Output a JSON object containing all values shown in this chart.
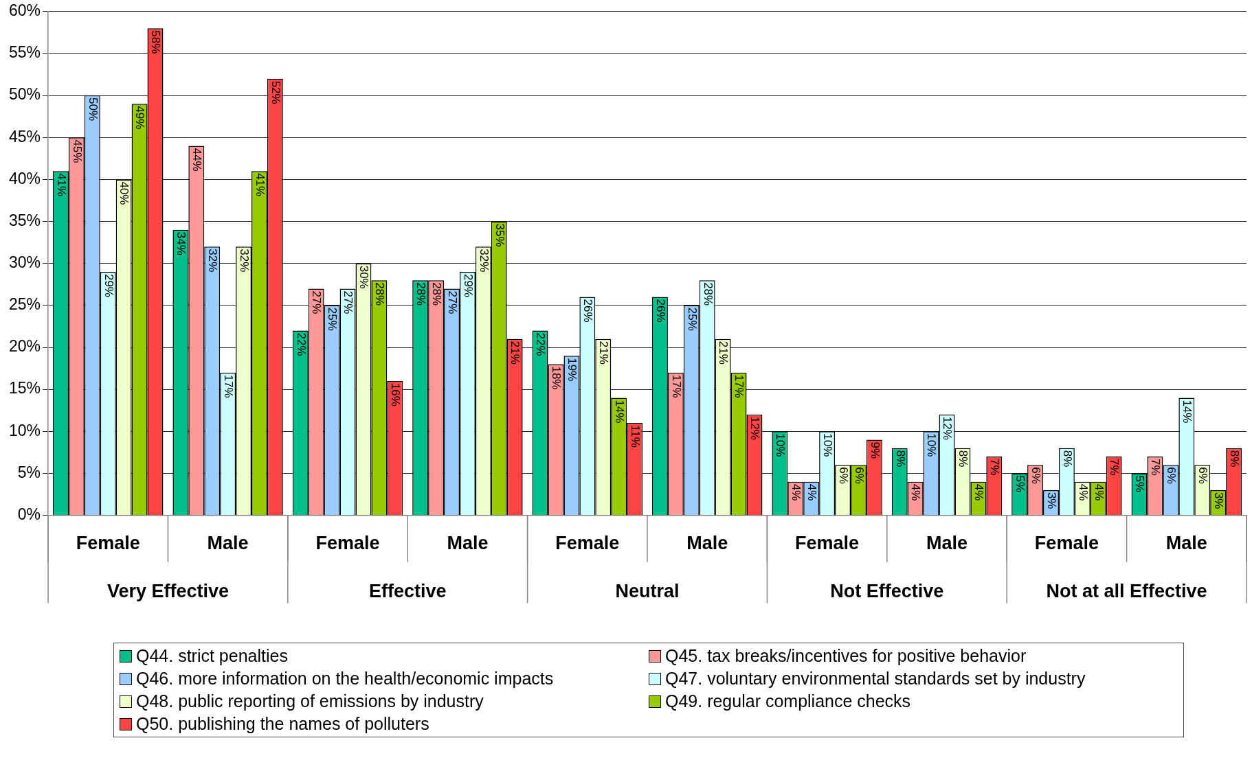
{
  "chart_data": {
    "type": "bar",
    "categories": [
      "Female",
      "Male",
      "Female",
      "Male",
      "Female",
      "Male",
      "Female",
      "Male",
      "Female",
      "Male"
    ],
    "annotations": [
      "Very Effective",
      "Effective",
      "Neutral",
      "Not Effective",
      "Not at all Effective"
    ],
    "series": [
      {
        "name": "Q44. strict penalties",
        "color": "#00c08c",
        "values": [
          41,
          34,
          22,
          28,
          22,
          26,
          10,
          8,
          5,
          5
        ],
        "value_labels": [
          "41%",
          "34%",
          "22%",
          "28%",
          "22%",
          "26%",
          "10%",
          "8%",
          "5%",
          "5%"
        ]
      },
      {
        "name": "Q45. tax breaks/incentives for positive behavior",
        "color": "#ff9999",
        "values": [
          45,
          44,
          27,
          28,
          18,
          17,
          4,
          4,
          6,
          7
        ],
        "value_labels": [
          "45%",
          "44%",
          "27%",
          "28%",
          "18%",
          "17%",
          "4%",
          "4%",
          "6%",
          "7%"
        ]
      },
      {
        "name": "Q46. more information on the health/economic impacts",
        "color": "#99ccff",
        "values": [
          50,
          32,
          25,
          27,
          19,
          25,
          4,
          10,
          3,
          6
        ],
        "value_labels": [
          "50%",
          "32%",
          "25%",
          "27%",
          "19%",
          "25%",
          "4%",
          "10%",
          "3%",
          "6%"
        ]
      },
      {
        "name": "Q47. voluntary environmental standards set by industry",
        "color": "#ccffff",
        "values": [
          29,
          17,
          27,
          29,
          26,
          28,
          10,
          12,
          8,
          14
        ],
        "value_labels": [
          "29%",
          "17%",
          "27%",
          "29%",
          "26%",
          "28%",
          "10%",
          "12%",
          "8%",
          "14%"
        ]
      },
      {
        "name": "Q48. public reporting of emissions by industry",
        "color": "#eeffcc",
        "values": [
          40,
          32,
          30,
          32,
          21,
          21,
          6,
          8,
          4,
          6
        ],
        "value_labels": [
          "40%",
          "32%",
          "30%",
          "32%",
          "21%",
          "21%",
          "6%",
          "8%",
          "4%",
          "6%"
        ]
      },
      {
        "name": "Q49. regular compliance checks",
        "color": "#99cc00",
        "values": [
          49,
          41,
          28,
          35,
          14,
          17,
          6,
          4,
          4,
          3
        ],
        "value_labels": [
          "49%",
          "41%",
          "28%",
          "35%",
          "14%",
          "17%",
          "6%",
          "4%",
          "4%",
          "3%"
        ]
      },
      {
        "name": "Q50. publishing the names of polluters",
        "color": "#ff4444",
        "values": [
          58,
          52,
          16,
          21,
          11,
          12,
          9,
          7,
          7,
          8
        ],
        "value_labels": [
          "58%",
          "52%",
          "16%",
          "21%",
          "11%",
          "12%",
          "9%",
          "7%",
          "7%",
          "8%"
        ]
      }
    ],
    "ylim": [
      0,
      60
    ],
    "yticks": [
      {
        "value": 0,
        "label": "0%"
      },
      {
        "value": 5,
        "label": "5%"
      },
      {
        "value": 10,
        "label": "10%"
      },
      {
        "value": 15,
        "label": "15%"
      },
      {
        "value": 20,
        "label": "20%"
      },
      {
        "value": 25,
        "label": "25%"
      },
      {
        "value": 30,
        "label": "30%"
      },
      {
        "value": 35,
        "label": "35%"
      },
      {
        "value": 40,
        "label": "40%"
      },
      {
        "value": 45,
        "label": "45%"
      },
      {
        "value": 50,
        "label": "50%"
      },
      {
        "value": 55,
        "label": "55%"
      },
      {
        "value": 60,
        "label": "60%"
      }
    ],
    "grid": "y",
    "legend": "bottom"
  }
}
